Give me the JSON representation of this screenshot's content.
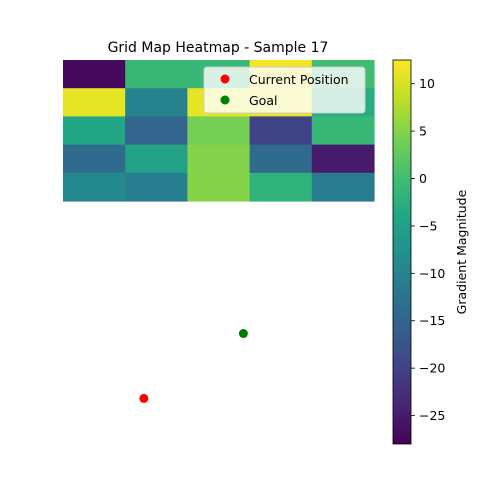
{
  "chart_data": {
    "type": "heatmap",
    "title": "Grid Map Heatmap - Sample 17",
    "xlabel": "",
    "ylabel": "",
    "grid": false,
    "colormap": "viridis",
    "rows": [
      [
        -27,
        -1,
        -1,
        12,
        0
      ],
      [
        11,
        -10,
        11,
        11,
        -3
      ],
      [
        -4,
        -15,
        4,
        -20,
        -1
      ],
      [
        -14,
        -5,
        5,
        -14,
        -25
      ],
      [
        -9,
        -11,
        5,
        -2,
        -11
      ]
    ],
    "colorbar": {
      "label": "Gradient Magnitude",
      "range": [
        -28,
        12.5
      ],
      "ticks": [
        10,
        5,
        0,
        -5,
        -10,
        -15,
        -20,
        -25
      ]
    },
    "markers": [
      {
        "name": "Current Position",
        "color": "#ff0000",
        "x": 1.3,
        "y": 12.0
      },
      {
        "name": "Goal",
        "color": "#008000",
        "x": 2.9,
        "y": 9.7
      }
    ],
    "legend": {
      "placement": "top-right",
      "entries": [
        "Current Position",
        "Goal"
      ]
    }
  }
}
